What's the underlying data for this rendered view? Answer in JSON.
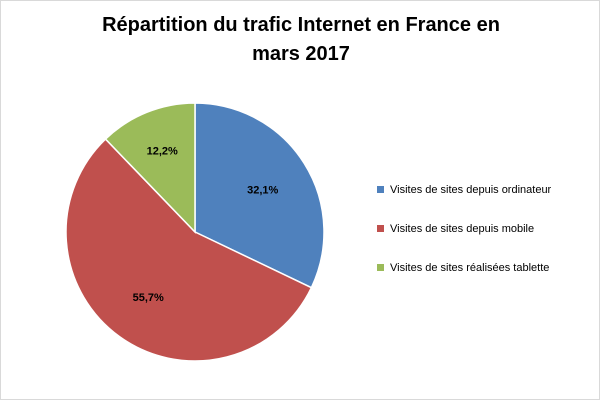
{
  "chart_data": {
    "type": "pie",
    "title_line1": "Répartition du trafic Internet en France en",
    "title_line2": "mars 2017",
    "slices": [
      {
        "label": "Visites de sites depuis ordinateur",
        "value": 32.1,
        "value_label": "32,1%",
        "color": "#4f81bd"
      },
      {
        "label": "Visites de sites depuis mobile",
        "value": 55.7,
        "value_label": "55,7%",
        "color": "#c0504d"
      },
      {
        "label": "Visites de sites réalisées tablette",
        "value": 12.2,
        "value_label": "12,2%",
        "color": "#9bbb59"
      }
    ],
    "start_angle": "12 o'clock, clockwise",
    "legend_position": "right"
  }
}
